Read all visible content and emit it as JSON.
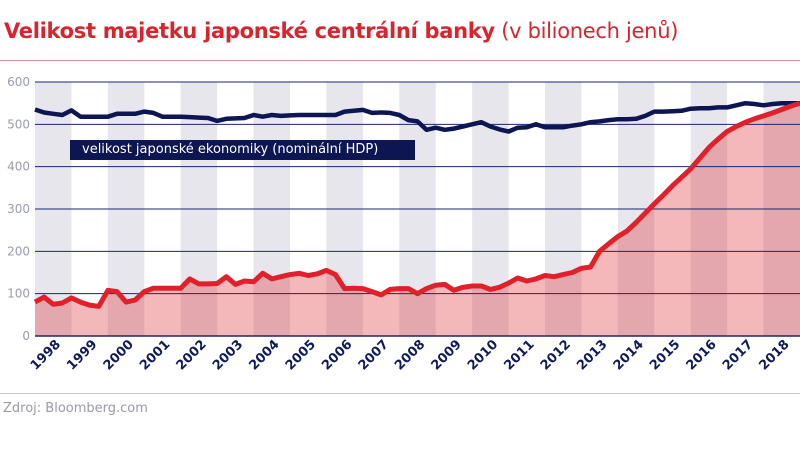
{
  "title": {
    "bold": "Velikost majetku japonské centrální banky",
    "unit": "(v bilionech jenů)"
  },
  "source": "Zdroj: Bloomberg.com",
  "chart_data": {
    "type": "area",
    "title": "Velikost majetku japonské centrální banky (v bilionech jenů)",
    "ylim": [
      0,
      600
    ],
    "yticks": [
      0,
      100,
      200,
      300,
      400,
      500,
      600
    ],
    "xticks": [
      "1998",
      "1999",
      "2000",
      "2001",
      "2002",
      "2003",
      "2004",
      "2005",
      "2006",
      "2007",
      "2008",
      "2009",
      "2010",
      "2011",
      "2012",
      "2013",
      "2014",
      "2015",
      "2016",
      "2017",
      "2018"
    ],
    "x_start": 1998,
    "x_step": 0.25,
    "grid": true,
    "alternating_year_bands": true,
    "colors": {
      "bank": "#e0202a",
      "bank_fill": "#e0303a",
      "gdp": "#0d1652",
      "band": "#e6e6ec",
      "grid": "#1c2670"
    },
    "series": [
      {
        "key": "bank",
        "values": [
          80,
          92,
          75,
          78,
          90,
          80,
          73,
          70,
          108,
          105,
          80,
          85,
          105,
          113,
          113,
          113,
          113,
          135,
          123,
          123,
          124,
          140,
          122,
          130,
          128,
          148,
          135,
          140,
          145,
          148,
          143,
          147,
          155,
          145,
          112,
          113,
          112,
          105,
          97,
          110,
          112,
          112,
          100,
          112,
          120,
          122,
          108,
          115,
          118,
          118,
          110,
          115,
          125,
          137,
          130,
          135,
          143,
          140,
          145,
          150,
          160,
          163,
          200,
          218,
          235,
          248,
          268,
          290,
          312,
          333,
          355,
          375,
          395,
          420,
          445,
          465,
          483,
          495,
          505,
          513,
          520,
          527,
          535,
          543,
          550
        ]
      },
      {
        "key": "gdp",
        "name": "velikost japonské ekonomiky (nominální HDP)",
        "values": [
          535,
          528,
          525,
          522,
          533,
          518,
          518,
          518,
          518,
          525,
          525,
          525,
          530,
          527,
          518,
          518,
          518,
          517,
          516,
          515,
          508,
          513,
          514,
          515,
          522,
          518,
          522,
          520,
          521,
          522,
          522,
          522,
          522,
          522,
          530,
          532,
          534,
          527,
          528,
          527,
          522,
          510,
          507,
          487,
          492,
          487,
          490,
          495,
          500,
          505,
          495,
          488,
          483,
          492,
          493,
          500,
          493,
          493,
          493,
          497,
          500,
          505,
          507,
          510,
          512,
          512,
          513,
          520,
          530,
          530,
          531,
          532,
          537,
          538,
          538,
          540,
          540,
          545,
          550,
          548,
          545,
          548,
          550,
          550,
          550
        ]
      }
    ]
  }
}
